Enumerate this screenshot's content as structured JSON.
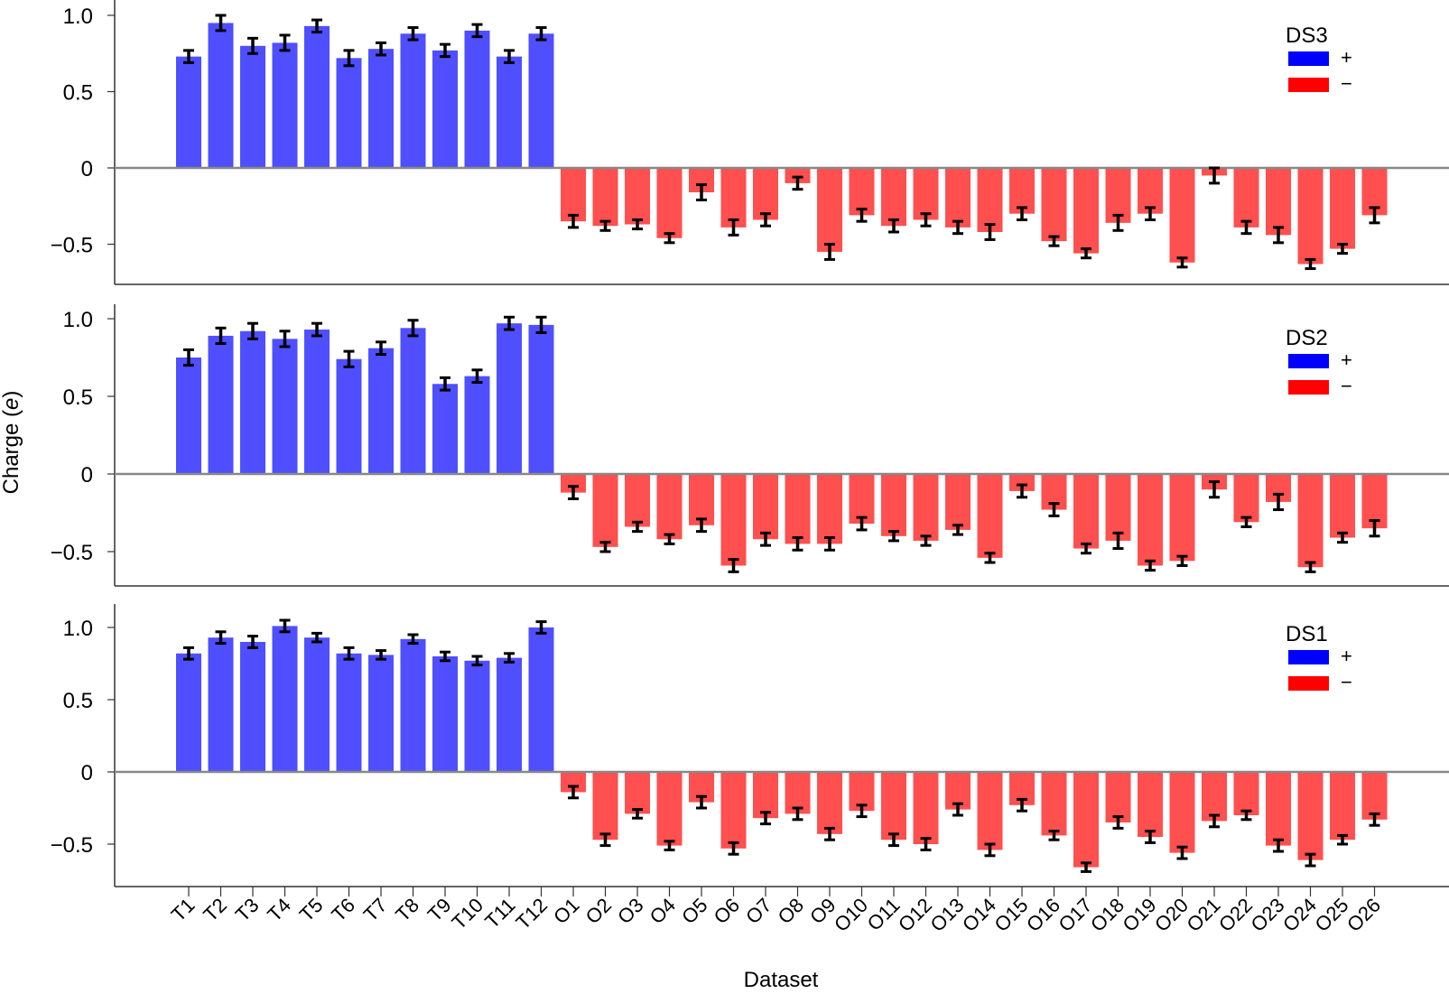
{
  "chart_data": [
    {
      "type": "bar",
      "title": "DS3",
      "xlabel": "Dataset",
      "ylabel": "Charge (e)",
      "ylim": [
        -0.75,
        1.1
      ],
      "yticks": [
        1.0,
        0.5,
        0,
        -0.5
      ],
      "ytick_labels": [
        "1.0",
        "0.5",
        "0",
        "−0.5"
      ],
      "legend": {
        "title": "DS3",
        "entries": [
          {
            "label": "+",
            "color": "#0000ff"
          },
          {
            "label": "−",
            "color": "#ff0000"
          }
        ],
        "position": "upper right"
      },
      "categories": [
        "T1",
        "T2",
        "T3",
        "T4",
        "T5",
        "T6",
        "T7",
        "T8",
        "T9",
        "T10",
        "T11",
        "T12",
        "O1",
        "O2",
        "O3",
        "O4",
        "O5",
        "O6",
        "O7",
        "O8",
        "O9",
        "O10",
        "O11",
        "O12",
        "O13",
        "O14",
        "O15",
        "O16",
        "O17",
        "O18",
        "O19",
        "O20",
        "O21",
        "O22",
        "O23",
        "O24",
        "O25",
        "O26"
      ],
      "values": [
        0.73,
        0.95,
        0.8,
        0.82,
        0.93,
        0.72,
        0.78,
        0.88,
        0.77,
        0.9,
        0.73,
        0.88,
        -0.35,
        -0.38,
        -0.37,
        -0.46,
        -0.16,
        -0.39,
        -0.34,
        -0.1,
        -0.55,
        -0.31,
        -0.38,
        -0.34,
        -0.39,
        -0.42,
        -0.3,
        -0.48,
        -0.56,
        -0.36,
        -0.3,
        -0.62,
        -0.05,
        -0.39,
        -0.44,
        -0.63,
        -0.53,
        -0.31
      ],
      "errors": [
        0.04,
        0.05,
        0.05,
        0.05,
        0.04,
        0.05,
        0.04,
        0.04,
        0.04,
        0.04,
        0.04,
        0.04,
        0.04,
        0.03,
        0.03,
        0.03,
        0.05,
        0.05,
        0.04,
        0.04,
        0.05,
        0.04,
        0.04,
        0.04,
        0.04,
        0.05,
        0.04,
        0.03,
        0.03,
        0.05,
        0.04,
        0.03,
        0.05,
        0.04,
        0.05,
        0.03,
        0.03,
        0.05
      ]
    },
    {
      "type": "bar",
      "title": "DS2",
      "xlabel": "Dataset",
      "ylabel": "Charge (e)",
      "ylim": [
        -0.75,
        1.1
      ],
      "yticks": [
        1.0,
        0.5,
        0,
        -0.5
      ],
      "ytick_labels": [
        "1.0",
        "0.5",
        "0",
        "−0.5"
      ],
      "legend": {
        "title": "DS2",
        "entries": [
          {
            "label": "+",
            "color": "#0000ff"
          },
          {
            "label": "−",
            "color": "#ff0000"
          }
        ],
        "position": "upper right"
      },
      "categories": [
        "T1",
        "T2",
        "T3",
        "T4",
        "T5",
        "T6",
        "T7",
        "T8",
        "T9",
        "T10",
        "T11",
        "T12",
        "O1",
        "O2",
        "O3",
        "O4",
        "O5",
        "O6",
        "O7",
        "O8",
        "O9",
        "O10",
        "O11",
        "O12",
        "O13",
        "O14",
        "O15",
        "O16",
        "O17",
        "O18",
        "O19",
        "O20",
        "O21",
        "O22",
        "O23",
        "O24",
        "O25",
        "O26"
      ],
      "values": [
        0.75,
        0.89,
        0.92,
        0.87,
        0.93,
        0.74,
        0.81,
        0.94,
        0.58,
        0.63,
        0.97,
        0.96,
        -0.12,
        -0.47,
        -0.34,
        -0.42,
        -0.33,
        -0.59,
        -0.42,
        -0.45,
        -0.45,
        -0.32,
        -0.4,
        -0.43,
        -0.36,
        -0.54,
        -0.11,
        -0.23,
        -0.48,
        -0.43,
        -0.59,
        -0.56,
        -0.1,
        -0.31,
        -0.18,
        -0.6,
        -0.41,
        -0.35
      ],
      "errors": [
        0.05,
        0.05,
        0.05,
        0.05,
        0.04,
        0.05,
        0.04,
        0.05,
        0.04,
        0.04,
        0.04,
        0.05,
        0.04,
        0.03,
        0.03,
        0.03,
        0.04,
        0.04,
        0.04,
        0.04,
        0.04,
        0.04,
        0.03,
        0.03,
        0.03,
        0.03,
        0.04,
        0.04,
        0.03,
        0.05,
        0.03,
        0.03,
        0.05,
        0.03,
        0.05,
        0.03,
        0.03,
        0.05
      ]
    },
    {
      "type": "bar",
      "title": "DS1",
      "xlabel": "Dataset",
      "ylabel": "Charge (e)",
      "ylim": [
        -0.75,
        1.1
      ],
      "yticks": [
        1.0,
        0.5,
        0,
        -0.5
      ],
      "ytick_labels": [
        "1.0",
        "0.5",
        "0",
        "−0.5"
      ],
      "legend": {
        "title": "DS1",
        "entries": [
          {
            "label": "+",
            "color": "#0000ff"
          },
          {
            "label": "−",
            "color": "#ff0000"
          }
        ],
        "position": "upper right"
      },
      "categories": [
        "T1",
        "T2",
        "T3",
        "T4",
        "T5",
        "T6",
        "T7",
        "T8",
        "T9",
        "T10",
        "T11",
        "T12",
        "O1",
        "O2",
        "O3",
        "O4",
        "O5",
        "O6",
        "O7",
        "O8",
        "O9",
        "O10",
        "O11",
        "O12",
        "O13",
        "O14",
        "O15",
        "O16",
        "O17",
        "O18",
        "O19",
        "O20",
        "O21",
        "O22",
        "O23",
        "O24",
        "O25",
        "O26"
      ],
      "values": [
        0.82,
        0.93,
        0.9,
        1.01,
        0.93,
        0.82,
        0.81,
        0.92,
        0.8,
        0.77,
        0.79,
        1.0,
        -0.14,
        -0.47,
        -0.29,
        -0.51,
        -0.21,
        -0.53,
        -0.32,
        -0.29,
        -0.43,
        -0.27,
        -0.47,
        -0.5,
        -0.26,
        -0.54,
        -0.23,
        -0.44,
        -0.66,
        -0.35,
        -0.45,
        -0.56,
        -0.34,
        -0.3,
        -0.51,
        -0.61,
        -0.47,
        -0.33
      ],
      "errors": [
        0.04,
        0.04,
        0.04,
        0.04,
        0.03,
        0.04,
        0.03,
        0.03,
        0.03,
        0.03,
        0.03,
        0.04,
        0.04,
        0.04,
        0.03,
        0.03,
        0.04,
        0.04,
        0.04,
        0.04,
        0.04,
        0.04,
        0.04,
        0.04,
        0.04,
        0.04,
        0.04,
        0.03,
        0.03,
        0.04,
        0.04,
        0.04,
        0.04,
        0.03,
        0.04,
        0.04,
        0.03,
        0.04
      ]
    }
  ],
  "figure": {
    "ylabel_text": "Charge (",
    "ylabel_italic": "e",
    "ylabel_close": ")",
    "xlabel": "Dataset",
    "bar_colors": {
      "positive": "#4f4fff",
      "negative": "#ff4f4f"
    },
    "legend_colors": {
      "positive": "#0000ff",
      "negative": "#ff0000"
    },
    "axis_color": "#333333",
    "zero_line_color": "#888888"
  }
}
